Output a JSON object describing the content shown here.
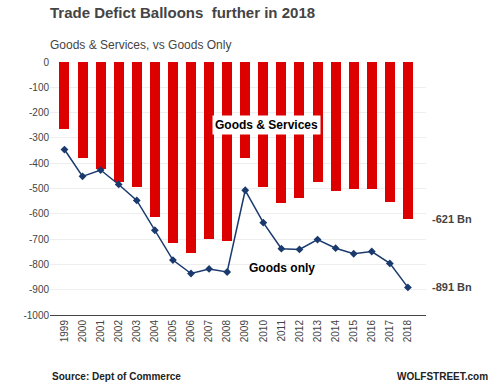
{
  "chart_data": {
    "type": "bar",
    "title": "Trade Defict Balloons  further in 2018",
    "subtitle": "Goods & Services, vs Goods Only",
    "x": [
      1999,
      2000,
      2001,
      2002,
      2003,
      2004,
      2005,
      2006,
      2007,
      2008,
      2009,
      2010,
      2011,
      2012,
      2013,
      2014,
      2015,
      2016,
      2017,
      2018
    ],
    "xlim": [
      1998.2,
      2019.0
    ],
    "xticks": [
      1999,
      2000,
      2001,
      2002,
      2003,
      2004,
      2005,
      2006,
      2007,
      2008,
      2009,
      2010,
      2011,
      2012,
      2013,
      2014,
      2015,
      2016,
      2017,
      2018
    ],
    "series": [
      {
        "name": "Goods & Services",
        "type": "bar",
        "color": "#dd0000",
        "values": [
          -265,
          -380,
          -424,
          -475,
          -496,
          -612,
          -714,
          -753,
          -700,
          -707,
          -381,
          -494,
          -558,
          -536,
          -476,
          -508,
          -500,
          -502,
          -552,
          -621
        ]
      },
      {
        "name": "Goods only",
        "type": "line",
        "color": "#1a3a6e",
        "marker": "diamond",
        "values": [
          -346,
          -452,
          -427,
          -484,
          -547,
          -665,
          -783,
          -836,
          -818,
          -830,
          -507,
          -635,
          -738,
          -741,
          -702,
          -736,
          -758,
          -749,
          -796,
          -891
        ]
      }
    ],
    "ylim": [
      -1000,
      0
    ],
    "yticks": [
      0,
      -100,
      -200,
      -300,
      -400,
      -500,
      -600,
      -700,
      -800,
      -900,
      -1000
    ],
    "grid": true,
    "annotations": [
      "-621 Bn",
      "-891 Bn"
    ],
    "source": "Source: Dept of Commerce",
    "watermark": "WOLFSTREET.com"
  }
}
